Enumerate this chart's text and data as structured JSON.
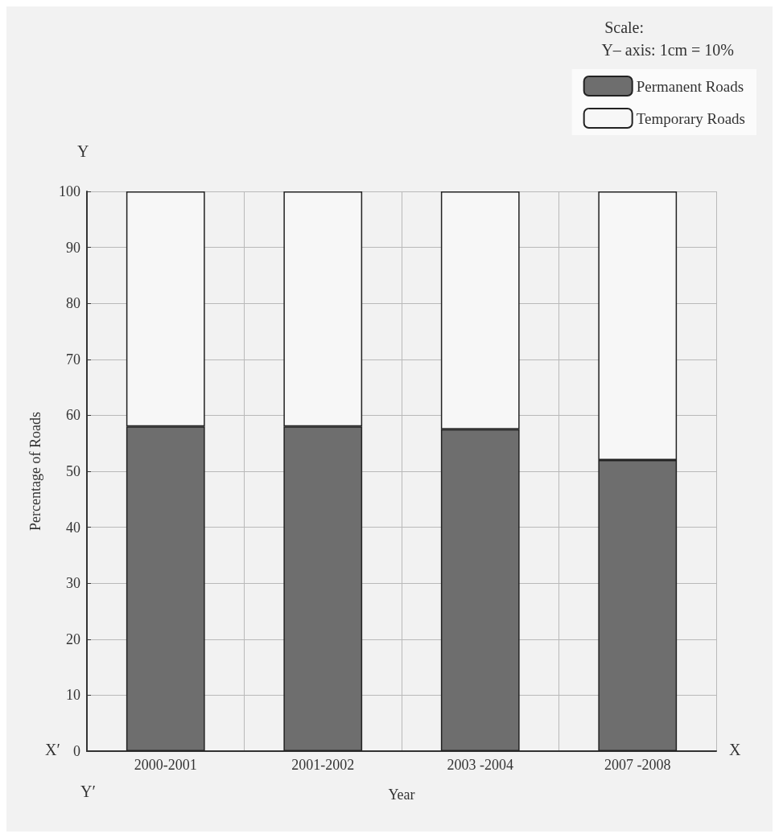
{
  "chart_data": {
    "type": "bar",
    "stacked": true,
    "xlabel": "Year",
    "ylabel": "Percentage of Roads",
    "categories": [
      "2000-2001",
      "2001-2002",
      "2003 -2004",
      "2007 -2008"
    ],
    "series": [
      {
        "name": "Permanent Roads",
        "color": "#6e6e6e",
        "values": [
          58,
          58,
          57.5,
          52
        ]
      },
      {
        "name": "Temporary Roads",
        "color": "#f7f7f7",
        "values": [
          42,
          42,
          42.5,
          48
        ]
      }
    ],
    "ylim": [
      0,
      100
    ],
    "yticks": [
      0,
      10,
      20,
      30,
      40,
      50,
      60,
      70,
      80,
      90,
      100
    ],
    "grid": true,
    "legend": "top right",
    "annotations": [
      "Scale:",
      "Y– axis: 1cm = 10%",
      "Y",
      "X′",
      "X",
      "Y′"
    ]
  }
}
